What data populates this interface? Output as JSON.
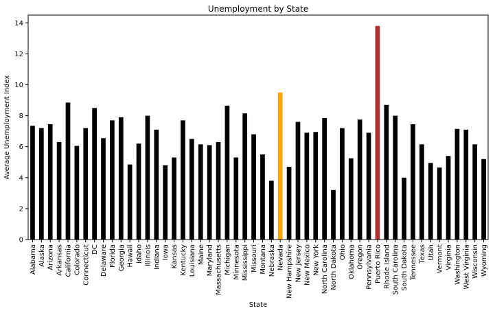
{
  "chart_data": {
    "type": "bar",
    "title": "Unemployment by State",
    "xlabel": "State",
    "ylabel": "Average Unemployment Index",
    "ylim": [
      0,
      14.5
    ],
    "yticks": [
      0,
      2,
      4,
      6,
      8,
      10,
      12,
      14
    ],
    "grid": false,
    "legend": "none",
    "default_color": "#000000",
    "categories": [
      "Alabama",
      "Alaska",
      "Arizona",
      "Arkansas",
      "California",
      "Colorado",
      "Connecticut",
      "DC",
      "Delaware",
      "Florida",
      "Georgia",
      "Hawaii",
      "Idaho",
      "Illinois",
      "Indiana",
      "Iowa",
      "Kansas",
      "Kentucky",
      "Louisiana",
      "Maine",
      "Maryland",
      "Massachusetts",
      "Michigan",
      "Minnesota",
      "Mississippi",
      "Missouri",
      "Montana",
      "Nebraska",
      "Nevada",
      "New Hampshire",
      "New Jersey",
      "New Mexico",
      "New York",
      "North Carolina",
      "North Dakota",
      "Ohio",
      "Oklahoma",
      "Oregon",
      "Pennsylvania",
      "Puerto Rico",
      "Rhode Island",
      "South Carolina",
      "South Dakota",
      "Tennessee",
      "Texas",
      "Utah",
      "Vermont",
      "Virginia",
      "Washington",
      "West Virginia",
      "Wisconsin",
      "Wyoming"
    ],
    "values": [
      7.35,
      7.2,
      7.45,
      6.3,
      8.85,
      6.05,
      7.2,
      8.5,
      6.55,
      7.7,
      7.9,
      4.85,
      6.2,
      8.0,
      7.1,
      4.8,
      5.3,
      7.7,
      6.5,
      6.15,
      6.1,
      6.3,
      8.65,
      5.3,
      8.15,
      6.8,
      5.5,
      3.8,
      9.5,
      4.7,
      7.6,
      6.9,
      6.95,
      7.85,
      3.2,
      7.2,
      5.25,
      7.75,
      6.9,
      13.8,
      8.7,
      8.0,
      4.0,
      7.45,
      6.15,
      4.95,
      4.65,
      5.4,
      7.15,
      7.1,
      6.15,
      5.2
    ],
    "highlights": [
      {
        "category": "Nevada",
        "color": "#ffa500"
      },
      {
        "category": "Puerto Rico",
        "color": "#b03030"
      }
    ]
  }
}
